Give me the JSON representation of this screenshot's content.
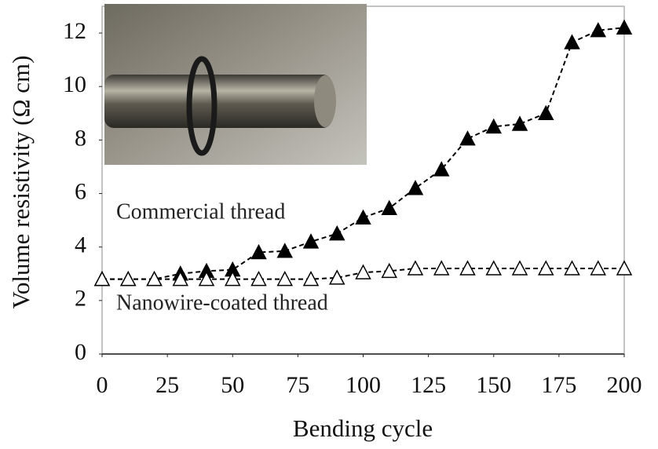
{
  "chart_data": {
    "type": "line",
    "x_label": "Bending cycle",
    "y_label": "Volume resistivity (Ω cm)",
    "xlim": [
      0,
      200
    ],
    "ylim": [
      0,
      13
    ],
    "xticks": [
      0,
      25,
      50,
      75,
      100,
      125,
      150,
      175,
      200
    ],
    "yticks": [
      0,
      2,
      4,
      6,
      8,
      10,
      12
    ],
    "x": [
      0,
      10,
      20,
      30,
      40,
      50,
      60,
      70,
      80,
      90,
      100,
      110,
      120,
      130,
      140,
      150,
      160,
      170,
      180,
      190,
      200
    ],
    "series": [
      {
        "name": "Commercial thread",
        "color": "#000000",
        "marker": "triangle",
        "filled": true,
        "values": [
          2.8,
          2.8,
          2.8,
          3.0,
          3.1,
          3.15,
          3.8,
          3.85,
          4.2,
          4.5,
          5.1,
          5.45,
          6.2,
          6.9,
          8.05,
          8.5,
          8.6,
          9.0,
          11.65,
          12.1,
          12.2
        ]
      },
      {
        "name": "Nanowire-coated thread",
        "color": "#000000",
        "marker": "triangle",
        "filled": false,
        "values": [
          2.8,
          2.8,
          2.8,
          2.8,
          2.8,
          2.8,
          2.8,
          2.8,
          2.8,
          2.85,
          3.05,
          3.1,
          3.2,
          3.2,
          3.2,
          3.2,
          3.2,
          3.2,
          3.2,
          3.2,
          3.2
        ]
      }
    ]
  }
}
